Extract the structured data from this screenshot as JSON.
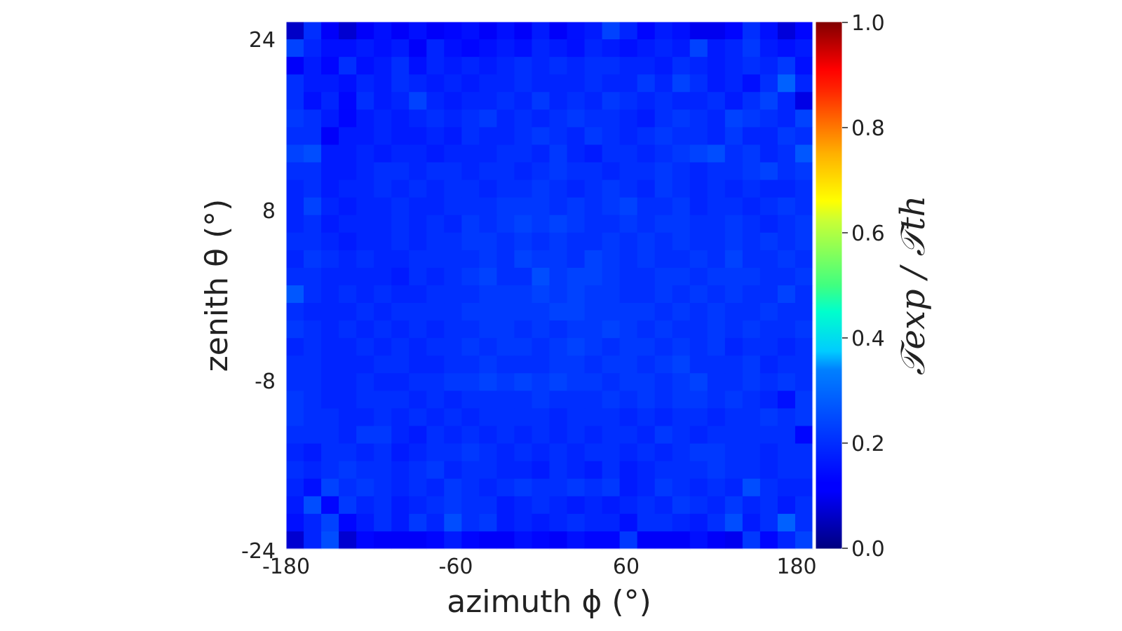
{
  "chart_data": {
    "type": "heatmap",
    "xlabel": "azimuth ϕ (°)",
    "ylabel": "zenith θ (°)",
    "colorbar_label": "𝒯exp / 𝒯th",
    "xlim": [
      -180,
      180
    ],
    "ylim": [
      -24,
      24
    ],
    "x_ticks": [
      "-180",
      "-60",
      "60",
      "180"
    ],
    "y_ticks": [
      "24",
      "8",
      "-8",
      "-24"
    ],
    "colorbar_range": [
      0.0,
      1.0
    ],
    "colorbar_ticks": [
      "1.0",
      "0.8",
      "0.6",
      "0.4",
      "0.2",
      "0.0"
    ],
    "colormap": "jet",
    "grid": false,
    "n_cols": 30,
    "n_rows": 30,
    "values_row_order": "top-to-bottom",
    "values": [
      [
        0.07,
        0.17,
        0.12,
        0.08,
        0.12,
        0.14,
        0.12,
        0.14,
        0.12,
        0.13,
        0.14,
        0.12,
        0.14,
        0.12,
        0.15,
        0.12,
        0.14,
        0.15,
        0.19,
        0.16,
        0.13,
        0.15,
        0.14,
        0.11,
        0.11,
        0.13,
        0.17,
        0.14,
        0.09,
        0.13
      ],
      [
        0.19,
        0.16,
        0.14,
        0.14,
        0.15,
        0.14,
        0.15,
        0.12,
        0.16,
        0.14,
        0.13,
        0.14,
        0.15,
        0.14,
        0.16,
        0.15,
        0.14,
        0.16,
        0.15,
        0.14,
        0.15,
        0.16,
        0.15,
        0.19,
        0.15,
        0.16,
        0.18,
        0.15,
        0.14,
        0.15
      ],
      [
        0.12,
        0.15,
        0.13,
        0.17,
        0.14,
        0.15,
        0.17,
        0.14,
        0.16,
        0.15,
        0.16,
        0.15,
        0.16,
        0.17,
        0.16,
        0.17,
        0.16,
        0.17,
        0.17,
        0.16,
        0.16,
        0.15,
        0.17,
        0.16,
        0.15,
        0.16,
        0.17,
        0.16,
        0.18,
        0.14
      ],
      [
        0.17,
        0.15,
        0.15,
        0.14,
        0.16,
        0.15,
        0.17,
        0.16,
        0.15,
        0.16,
        0.15,
        0.16,
        0.16,
        0.17,
        0.16,
        0.16,
        0.16,
        0.17,
        0.16,
        0.16,
        0.18,
        0.16,
        0.19,
        0.17,
        0.15,
        0.16,
        0.14,
        0.17,
        0.22,
        0.16
      ],
      [
        0.17,
        0.14,
        0.16,
        0.13,
        0.17,
        0.15,
        0.16,
        0.19,
        0.16,
        0.15,
        0.16,
        0.16,
        0.17,
        0.16,
        0.18,
        0.16,
        0.17,
        0.16,
        0.18,
        0.17,
        0.16,
        0.17,
        0.16,
        0.16,
        0.17,
        0.15,
        0.17,
        0.19,
        0.16,
        0.1
      ],
      [
        0.18,
        0.17,
        0.15,
        0.13,
        0.15,
        0.16,
        0.15,
        0.16,
        0.17,
        0.16,
        0.17,
        0.18,
        0.16,
        0.17,
        0.16,
        0.17,
        0.18,
        0.17,
        0.17,
        0.16,
        0.15,
        0.17,
        0.18,
        0.17,
        0.16,
        0.19,
        0.18,
        0.17,
        0.16,
        0.19
      ],
      [
        0.17,
        0.17,
        0.12,
        0.15,
        0.15,
        0.16,
        0.15,
        0.15,
        0.16,
        0.15,
        0.17,
        0.16,
        0.16,
        0.17,
        0.18,
        0.17,
        0.16,
        0.18,
        0.17,
        0.16,
        0.17,
        0.18,
        0.17,
        0.17,
        0.16,
        0.18,
        0.16,
        0.16,
        0.18,
        0.17
      ],
      [
        0.19,
        0.2,
        0.15,
        0.15,
        0.16,
        0.15,
        0.16,
        0.16,
        0.15,
        0.16,
        0.16,
        0.16,
        0.17,
        0.17,
        0.16,
        0.18,
        0.16,
        0.15,
        0.17,
        0.17,
        0.16,
        0.17,
        0.18,
        0.19,
        0.2,
        0.17,
        0.18,
        0.16,
        0.17,
        0.21
      ],
      [
        0.17,
        0.17,
        0.15,
        0.15,
        0.16,
        0.17,
        0.17,
        0.16,
        0.17,
        0.17,
        0.16,
        0.17,
        0.17,
        0.16,
        0.17,
        0.18,
        0.17,
        0.17,
        0.16,
        0.17,
        0.17,
        0.18,
        0.17,
        0.16,
        0.17,
        0.17,
        0.18,
        0.19,
        0.17,
        0.18
      ],
      [
        0.16,
        0.17,
        0.15,
        0.16,
        0.16,
        0.17,
        0.16,
        0.17,
        0.16,
        0.17,
        0.17,
        0.16,
        0.17,
        0.17,
        0.18,
        0.17,
        0.16,
        0.17,
        0.18,
        0.17,
        0.16,
        0.18,
        0.17,
        0.16,
        0.17,
        0.16,
        0.17,
        0.16,
        0.16,
        0.17
      ],
      [
        0.16,
        0.19,
        0.16,
        0.15,
        0.16,
        0.16,
        0.17,
        0.16,
        0.16,
        0.17,
        0.17,
        0.17,
        0.18,
        0.18,
        0.18,
        0.17,
        0.18,
        0.17,
        0.18,
        0.19,
        0.17,
        0.17,
        0.18,
        0.16,
        0.17,
        0.17,
        0.16,
        0.17,
        0.18,
        0.17
      ],
      [
        0.16,
        0.17,
        0.15,
        0.16,
        0.16,
        0.16,
        0.17,
        0.16,
        0.17,
        0.16,
        0.18,
        0.17,
        0.18,
        0.19,
        0.18,
        0.19,
        0.18,
        0.17,
        0.17,
        0.18,
        0.17,
        0.18,
        0.18,
        0.17,
        0.17,
        0.18,
        0.17,
        0.16,
        0.17,
        0.18
      ],
      [
        0.17,
        0.17,
        0.16,
        0.15,
        0.16,
        0.16,
        0.17,
        0.16,
        0.17,
        0.17,
        0.18,
        0.18,
        0.17,
        0.18,
        0.17,
        0.18,
        0.17,
        0.17,
        0.18,
        0.17,
        0.18,
        0.17,
        0.18,
        0.17,
        0.17,
        0.18,
        0.17,
        0.18,
        0.17,
        0.18
      ],
      [
        0.16,
        0.18,
        0.17,
        0.16,
        0.17,
        0.16,
        0.16,
        0.17,
        0.17,
        0.17,
        0.17,
        0.18,
        0.17,
        0.19,
        0.18,
        0.18,
        0.17,
        0.19,
        0.18,
        0.17,
        0.18,
        0.17,
        0.17,
        0.18,
        0.17,
        0.19,
        0.17,
        0.17,
        0.18,
        0.17
      ],
      [
        0.17,
        0.17,
        0.16,
        0.16,
        0.16,
        0.16,
        0.15,
        0.17,
        0.16,
        0.17,
        0.18,
        0.19,
        0.17,
        0.17,
        0.2,
        0.18,
        0.19,
        0.19,
        0.18,
        0.17,
        0.17,
        0.18,
        0.18,
        0.17,
        0.18,
        0.18,
        0.18,
        0.17,
        0.17,
        0.18
      ],
      [
        0.21,
        0.17,
        0.16,
        0.17,
        0.16,
        0.17,
        0.16,
        0.16,
        0.17,
        0.17,
        0.17,
        0.18,
        0.18,
        0.18,
        0.19,
        0.18,
        0.19,
        0.18,
        0.18,
        0.17,
        0.17,
        0.18,
        0.17,
        0.18,
        0.17,
        0.18,
        0.17,
        0.17,
        0.19,
        0.17
      ],
      [
        0.17,
        0.16,
        0.16,
        0.16,
        0.17,
        0.16,
        0.17,
        0.17,
        0.17,
        0.17,
        0.18,
        0.18,
        0.18,
        0.18,
        0.18,
        0.19,
        0.19,
        0.18,
        0.18,
        0.18,
        0.18,
        0.17,
        0.18,
        0.17,
        0.18,
        0.17,
        0.17,
        0.18,
        0.17,
        0.17
      ],
      [
        0.18,
        0.17,
        0.16,
        0.17,
        0.16,
        0.17,
        0.16,
        0.17,
        0.16,
        0.17,
        0.17,
        0.18,
        0.18,
        0.17,
        0.18,
        0.17,
        0.18,
        0.18,
        0.19,
        0.18,
        0.17,
        0.18,
        0.17,
        0.17,
        0.18,
        0.17,
        0.18,
        0.17,
        0.17,
        0.18
      ],
      [
        0.16,
        0.17,
        0.16,
        0.16,
        0.17,
        0.16,
        0.17,
        0.16,
        0.17,
        0.17,
        0.18,
        0.17,
        0.18,
        0.18,
        0.17,
        0.18,
        0.19,
        0.18,
        0.17,
        0.18,
        0.18,
        0.17,
        0.18,
        0.17,
        0.18,
        0.16,
        0.17,
        0.17,
        0.16,
        0.17
      ],
      [
        0.17,
        0.17,
        0.16,
        0.16,
        0.16,
        0.17,
        0.17,
        0.16,
        0.16,
        0.17,
        0.17,
        0.18,
        0.17,
        0.17,
        0.17,
        0.18,
        0.18,
        0.17,
        0.18,
        0.18,
        0.17,
        0.18,
        0.19,
        0.17,
        0.17,
        0.17,
        0.18,
        0.16,
        0.17,
        0.17
      ],
      [
        0.17,
        0.17,
        0.16,
        0.16,
        0.17,
        0.16,
        0.16,
        0.17,
        0.17,
        0.18,
        0.18,
        0.19,
        0.18,
        0.19,
        0.18,
        0.19,
        0.18,
        0.18,
        0.17,
        0.18,
        0.18,
        0.17,
        0.18,
        0.19,
        0.17,
        0.17,
        0.18,
        0.17,
        0.18,
        0.17
      ],
      [
        0.18,
        0.17,
        0.16,
        0.16,
        0.17,
        0.17,
        0.17,
        0.16,
        0.17,
        0.16,
        0.17,
        0.17,
        0.17,
        0.17,
        0.18,
        0.17,
        0.17,
        0.17,
        0.18,
        0.17,
        0.18,
        0.17,
        0.18,
        0.18,
        0.17,
        0.18,
        0.17,
        0.16,
        0.14,
        0.18
      ],
      [
        0.18,
        0.17,
        0.17,
        0.16,
        0.16,
        0.17,
        0.16,
        0.17,
        0.16,
        0.17,
        0.16,
        0.17,
        0.17,
        0.17,
        0.17,
        0.16,
        0.17,
        0.17,
        0.17,
        0.16,
        0.17,
        0.16,
        0.17,
        0.17,
        0.16,
        0.17,
        0.17,
        0.18,
        0.17,
        0.18
      ],
      [
        0.17,
        0.17,
        0.17,
        0.16,
        0.18,
        0.18,
        0.16,
        0.15,
        0.17,
        0.16,
        0.17,
        0.16,
        0.17,
        0.16,
        0.17,
        0.16,
        0.17,
        0.16,
        0.17,
        0.17,
        0.16,
        0.18,
        0.17,
        0.16,
        0.17,
        0.17,
        0.17,
        0.17,
        0.17,
        0.13
      ],
      [
        0.16,
        0.15,
        0.17,
        0.17,
        0.16,
        0.17,
        0.15,
        0.16,
        0.17,
        0.17,
        0.18,
        0.17,
        0.16,
        0.17,
        0.16,
        0.17,
        0.16,
        0.17,
        0.17,
        0.16,
        0.17,
        0.16,
        0.17,
        0.18,
        0.18,
        0.17,
        0.17,
        0.16,
        0.17,
        0.17
      ],
      [
        0.17,
        0.16,
        0.17,
        0.18,
        0.17,
        0.17,
        0.16,
        0.17,
        0.18,
        0.16,
        0.17,
        0.17,
        0.16,
        0.16,
        0.15,
        0.17,
        0.16,
        0.15,
        0.17,
        0.15,
        0.16,
        0.17,
        0.17,
        0.17,
        0.18,
        0.17,
        0.17,
        0.16,
        0.17,
        0.17
      ],
      [
        0.16,
        0.14,
        0.19,
        0.17,
        0.18,
        0.17,
        0.16,
        0.17,
        0.16,
        0.18,
        0.17,
        0.16,
        0.17,
        0.18,
        0.17,
        0.17,
        0.18,
        0.17,
        0.18,
        0.15,
        0.16,
        0.18,
        0.17,
        0.16,
        0.17,
        0.16,
        0.2,
        0.17,
        0.16,
        0.16
      ],
      [
        0.15,
        0.2,
        0.13,
        0.18,
        0.16,
        0.17,
        0.15,
        0.16,
        0.17,
        0.18,
        0.17,
        0.17,
        0.15,
        0.16,
        0.17,
        0.16,
        0.15,
        0.16,
        0.15,
        0.16,
        0.17,
        0.16,
        0.18,
        0.17,
        0.16,
        0.18,
        0.16,
        0.17,
        0.15,
        0.17
      ],
      [
        0.14,
        0.16,
        0.19,
        0.13,
        0.15,
        0.17,
        0.15,
        0.18,
        0.16,
        0.2,
        0.17,
        0.18,
        0.15,
        0.16,
        0.15,
        0.16,
        0.17,
        0.16,
        0.16,
        0.14,
        0.17,
        0.17,
        0.16,
        0.15,
        0.17,
        0.2,
        0.15,
        0.17,
        0.22,
        0.17
      ],
      [
        0.08,
        0.16,
        0.2,
        0.08,
        0.13,
        0.12,
        0.12,
        0.12,
        0.13,
        0.15,
        0.13,
        0.12,
        0.12,
        0.14,
        0.13,
        0.12,
        0.14,
        0.13,
        0.13,
        0.18,
        0.12,
        0.12,
        0.12,
        0.14,
        0.12,
        0.11,
        0.18,
        0.13,
        0.16,
        0.19
      ]
    ]
  }
}
